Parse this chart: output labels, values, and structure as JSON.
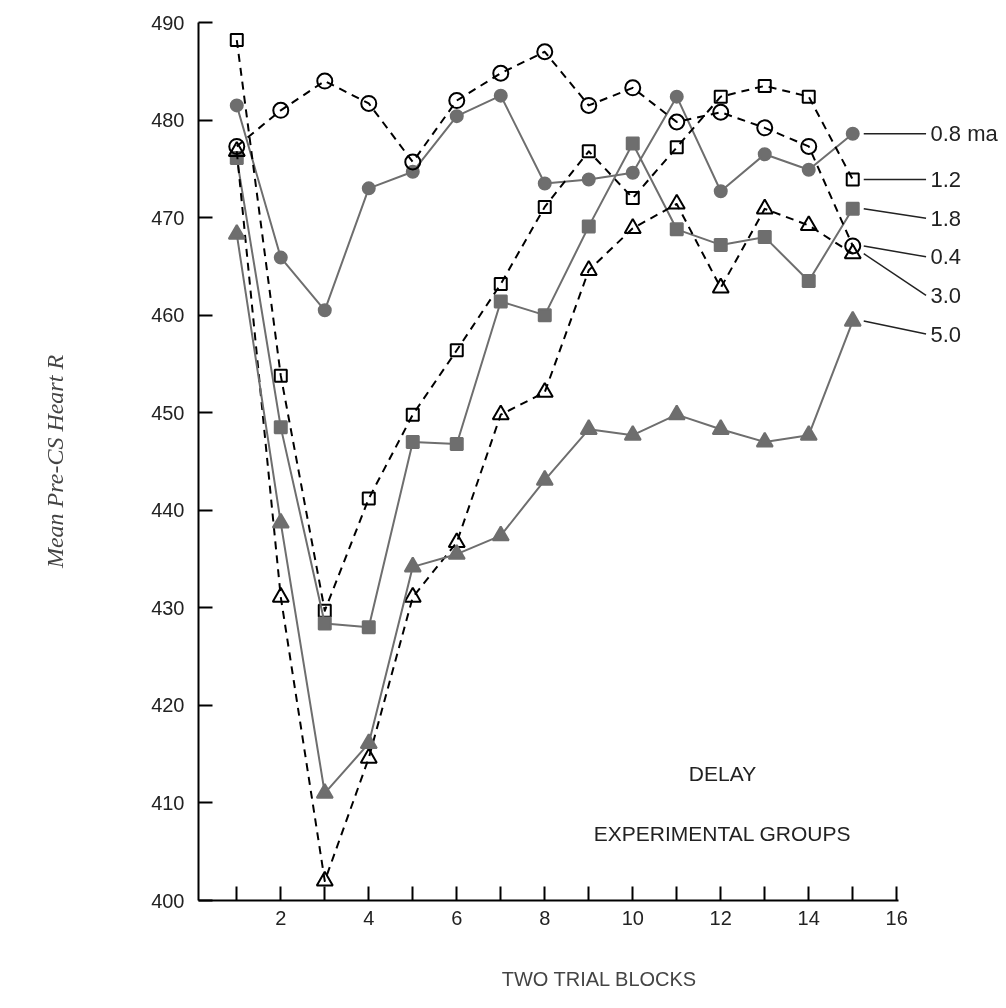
{
  "chart_data": {
    "type": "line",
    "xlabel": "TWO TRIAL BLOCKS",
    "ylabel": "Mean Pre-CS Heart R",
    "annotations": [
      "DELAY",
      "EXPERIMENTAL GROUPS"
    ],
    "x": [
      1,
      2,
      3,
      4,
      5,
      6,
      7,
      8,
      9,
      10,
      11,
      12,
      13,
      14,
      15
    ],
    "xlim": [
      0.13,
      16.05
    ],
    "ylim": [
      400,
      490
    ],
    "xticks": [
      {
        "value": 1,
        "label": null
      },
      2,
      {
        "value": 3,
        "label": null
      },
      4,
      {
        "value": 5,
        "label": null
      },
      6,
      {
        "value": 7,
        "label": null
      },
      8,
      {
        "value": 9,
        "label": null
      },
      10,
      {
        "value": 11,
        "label": null
      },
      12,
      {
        "value": 13,
        "label": null
      },
      14,
      {
        "value": 15,
        "label": null
      },
      16
    ],
    "yticks": [
      400,
      410,
      420,
      430,
      440,
      450,
      460,
      470,
      480,
      490
    ],
    "series": [
      {
        "name": "0.8 ma",
        "color": "#6e6e6e",
        "marker": "circle",
        "line_style": "solid",
        "values": [
          481.5,
          465.9,
          460.5,
          473,
          474.7,
          480.4,
          482.5,
          473.5,
          473.9,
          474.6,
          482.4,
          472.7,
          476.5,
          474.9,
          478.6
        ]
      },
      {
        "name": "1.2",
        "color": "#000000",
        "marker": "square",
        "line_style": "dashed",
        "values": [
          488.2,
          453.8,
          429.7,
          441.2,
          449.8,
          456.4,
          463.2,
          471.1,
          476.8,
          472,
          477.2,
          482.4,
          483.5,
          482.4,
          473.9
        ]
      },
      {
        "name": "1.8",
        "color": "#6e6e6e",
        "marker": "square",
        "line_style": "solid",
        "values": [
          476.1,
          448.5,
          428.4,
          428,
          447,
          446.8,
          461.4,
          460,
          469.1,
          477.6,
          468.8,
          467.2,
          468,
          463.5,
          470.9
        ]
      },
      {
        "name": "0.4",
        "color": "#000000",
        "marker": "circle",
        "line_style": "dashed",
        "values": [
          477.3,
          481,
          484,
          481.7,
          475.7,
          482,
          484.8,
          487,
          481.5,
          483.3,
          479.8,
          480.8,
          479.2,
          477.3,
          467.1
        ]
      },
      {
        "name": "3.0",
        "color": "#000000",
        "marker": "triangle",
        "line_style": "dashed",
        "values": [
          476.8,
          431.1,
          402,
          414.6,
          431.1,
          436.7,
          449.8,
          452.1,
          464.6,
          468.9,
          471.4,
          462.8,
          470.9,
          469.2,
          466.3
        ]
      },
      {
        "name": "5.0",
        "color": "#6e6e6e",
        "marker": "triangle",
        "line_style": "solid",
        "values": [
          468.3,
          438.7,
          411,
          416.1,
          434.2,
          435.5,
          437.4,
          443.1,
          448.3,
          447.7,
          449.8,
          448.3,
          447,
          447.7,
          459.4
        ]
      }
    ]
  }
}
